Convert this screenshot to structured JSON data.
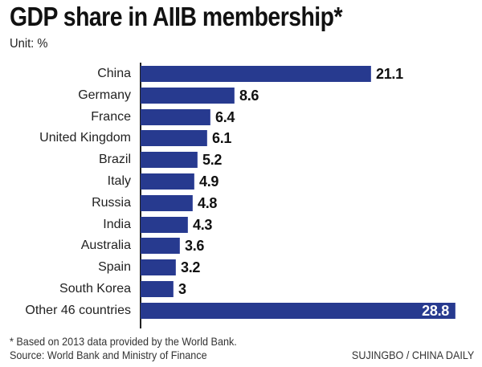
{
  "header": {
    "title": "GDP share in AIIB membership*",
    "unit": "Unit: %"
  },
  "footer": {
    "footnote": "* Based on 2013 data provided by the World Bank.",
    "source": "Source: World Bank and Ministry of Finance",
    "credit": "SUJINGBO / CHINA DAILY"
  },
  "colors": {
    "bar": "#273a8f",
    "axis": "#222222",
    "value_inside": "#ffffff"
  },
  "chart_data": {
    "type": "bar",
    "orientation": "horizontal",
    "title": "GDP share in AIIB membership*",
    "subtitle": "Unit: %",
    "xlabel": "",
    "ylabel": "",
    "categories": [
      "China",
      "Germany",
      "France",
      "United Kingdom",
      "Brazil",
      "Italy",
      "Russia",
      "India",
      "Australia",
      "Spain",
      "South Korea",
      "Other 46 countries"
    ],
    "values": [
      21.1,
      8.6,
      6.4,
      6.1,
      5.2,
      4.9,
      4.8,
      4.3,
      3.6,
      3.2,
      3,
      28.8
    ],
    "value_labels": [
      "21.1",
      "8.6",
      "6.4",
      "6.1",
      "5.2",
      "4.9",
      "4.8",
      "4.3",
      "3.6",
      "3.2",
      "3",
      "28.8"
    ],
    "xlim": [
      0,
      28.8
    ],
    "grid": false,
    "legend": null,
    "annotations": [
      "* Based on 2013 data provided by the World Bank.",
      "Source: World Bank and Ministry of Finance",
      "SUJINGBO / CHINA DAILY"
    ]
  }
}
